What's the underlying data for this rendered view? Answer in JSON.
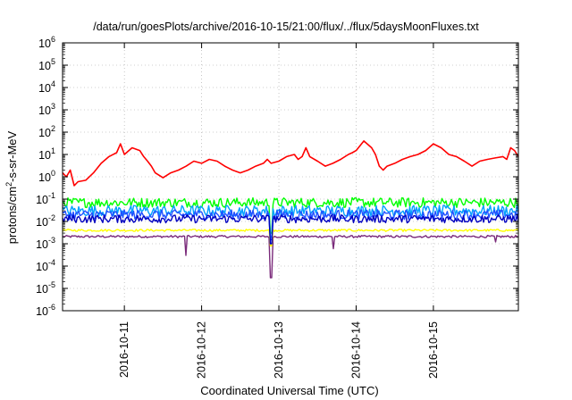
{
  "chart_data": {
    "type": "line",
    "title": "/data/run/goesPlots/archive/2016-10-15/21:00/flux/../flux/5daysMoonFluxes.txt",
    "xlabel": "Coordinated Universal Time (UTC)",
    "ylabel": "protons/cm²-s-sr-MeV",
    "ylabel_parts": {
      "pre": "protons/cm",
      "sup": "2",
      "post": "-s-sr-MeV"
    },
    "y_scale": "log",
    "ylim": [
      1e-06,
      1000000.0
    ],
    "y_ticks": [
      {
        "base": "10",
        "exp": "-6",
        "value": 1e-06
      },
      {
        "base": "10",
        "exp": "-5",
        "value": 1e-05
      },
      {
        "base": "10",
        "exp": "-4",
        "value": 0.0001
      },
      {
        "base": "10",
        "exp": "-3",
        "value": 0.001
      },
      {
        "base": "10",
        "exp": "-2",
        "value": 0.01
      },
      {
        "base": "10",
        "exp": "-1",
        "value": 0.1
      },
      {
        "base": "10",
        "exp": "0",
        "value": 1
      },
      {
        "base": "10",
        "exp": "1",
        "value": 10
      },
      {
        "base": "10",
        "exp": "2",
        "value": 100
      },
      {
        "base": "10",
        "exp": "3",
        "value": 1000
      },
      {
        "base": "10",
        "exp": "4",
        "value": 10000
      },
      {
        "base": "10",
        "exp": "5",
        "value": 100000
      },
      {
        "base": "10",
        "exp": "6",
        "value": 1000000
      }
    ],
    "x_range_days": [
      0,
      5.9
    ],
    "x_ticks": [
      {
        "label": "2016-10-11",
        "day": 0.8
      },
      {
        "label": "2016-10-12",
        "day": 1.8
      },
      {
        "label": "2016-10-13",
        "day": 2.8
      },
      {
        "label": "2016-10-14",
        "day": 3.8
      },
      {
        "label": "2016-10-15",
        "day": 4.8
      }
    ],
    "grid": true,
    "series": [
      {
        "color": "#ff0000",
        "shape": "red",
        "points": [
          [
            0,
            1.5
          ],
          [
            0.05,
            1.0
          ],
          [
            0.1,
            2
          ],
          [
            0.15,
            0.4
          ],
          [
            0.2,
            0.6
          ],
          [
            0.3,
            0.7
          ],
          [
            0.4,
            1.5
          ],
          [
            0.5,
            4
          ],
          [
            0.6,
            8
          ],
          [
            0.7,
            12
          ],
          [
            0.75,
            30
          ],
          [
            0.8,
            10
          ],
          [
            0.9,
            20
          ],
          [
            1.0,
            15
          ],
          [
            1.05,
            8
          ],
          [
            1.1,
            5
          ],
          [
            1.15,
            3
          ],
          [
            1.2,
            1.5
          ],
          [
            1.3,
            0.9
          ],
          [
            1.4,
            1.5
          ],
          [
            1.5,
            2
          ],
          [
            1.6,
            3
          ],
          [
            1.7,
            5
          ],
          [
            1.8,
            4
          ],
          [
            1.9,
            6
          ],
          [
            2.0,
            5
          ],
          [
            2.1,
            3
          ],
          [
            2.2,
            2
          ],
          [
            2.3,
            1.5
          ],
          [
            2.4,
            2
          ],
          [
            2.5,
            3
          ],
          [
            2.6,
            4
          ],
          [
            2.65,
            6
          ],
          [
            2.7,
            4
          ],
          [
            2.8,
            5
          ],
          [
            2.9,
            8
          ],
          [
            3.0,
            10
          ],
          [
            3.05,
            6
          ],
          [
            3.1,
            8
          ],
          [
            3.15,
            20
          ],
          [
            3.2,
            8
          ],
          [
            3.3,
            5
          ],
          [
            3.4,
            3
          ],
          [
            3.5,
            4
          ],
          [
            3.6,
            6
          ],
          [
            3.7,
            10
          ],
          [
            3.75,
            12
          ],
          [
            3.8,
            15
          ],
          [
            3.9,
            40
          ],
          [
            4.0,
            20
          ],
          [
            4.05,
            10
          ],
          [
            4.1,
            3
          ],
          [
            4.15,
            2
          ],
          [
            4.2,
            3
          ],
          [
            4.3,
            4
          ],
          [
            4.4,
            6
          ],
          [
            4.5,
            8
          ],
          [
            4.6,
            10
          ],
          [
            4.7,
            15
          ],
          [
            4.8,
            30
          ],
          [
            4.9,
            20
          ],
          [
            5.0,
            10
          ],
          [
            5.1,
            8
          ],
          [
            5.2,
            5
          ],
          [
            5.3,
            3
          ],
          [
            5.4,
            5
          ],
          [
            5.5,
            6
          ],
          [
            5.6,
            7
          ],
          [
            5.7,
            8
          ],
          [
            5.75,
            6
          ],
          [
            5.8,
            20
          ],
          [
            5.85,
            15
          ],
          [
            5.9,
            8
          ]
        ]
      },
      {
        "color": "#00ff00",
        "shape": "green"
      },
      {
        "color": "#00a0ff",
        "shape": "cyan"
      },
      {
        "color": "#2050ff",
        "shape": "blue"
      },
      {
        "color": "#0000c0",
        "shape": "navy"
      },
      {
        "color": "#ffff00",
        "shape": "yellow"
      },
      {
        "color": "#7a2a7a",
        "shape": "purple"
      }
    ]
  }
}
